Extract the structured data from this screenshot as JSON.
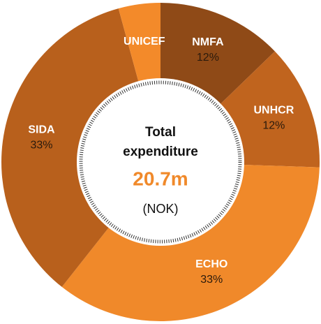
{
  "chart_data": {
    "type": "donut",
    "categories": [
      "NMFA",
      "UNHCR",
      "ECHO",
      "SIDA",
      "UNICEF"
    ],
    "values": [
      12,
      12,
      33,
      33,
      4
    ],
    "value_labels": [
      "12%",
      "12%",
      "33%",
      "33%",
      null
    ],
    "colors": [
      "#8f4a17",
      "#c0641e",
      "#f0892a",
      "#b8601c",
      "#f38a2a"
    ],
    "center_label": [
      "Total",
      "expenditure"
    ],
    "total": "20.7m",
    "unit": "(NOK)"
  }
}
